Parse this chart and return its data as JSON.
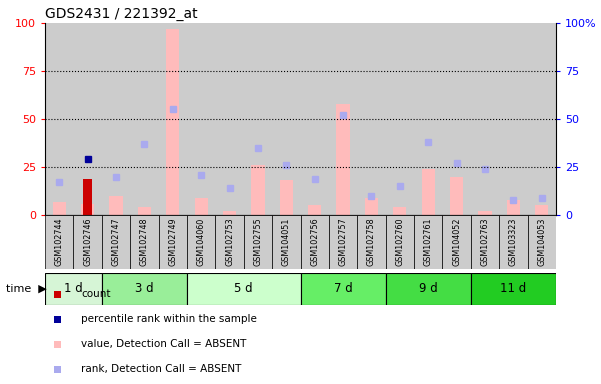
{
  "title": "GDS2431 / 221392_at",
  "samples": [
    "GSM102744",
    "GSM102746",
    "GSM102747",
    "GSM102748",
    "GSM102749",
    "GSM104060",
    "GSM102753",
    "GSM102755",
    "GSM104051",
    "GSM102756",
    "GSM102757",
    "GSM102758",
    "GSM102760",
    "GSM102761",
    "GSM104052",
    "GSM102763",
    "GSM103323",
    "GSM104053"
  ],
  "time_groups": [
    {
      "label": "1 d",
      "start": 0,
      "end": 2,
      "color": "#d6f5d6"
    },
    {
      "label": "3 d",
      "start": 2,
      "end": 5,
      "color": "#99ee99"
    },
    {
      "label": "5 d",
      "start": 5,
      "end": 9,
      "color": "#ccffcc"
    },
    {
      "label": "7 d",
      "start": 9,
      "end": 12,
      "color": "#66ee66"
    },
    {
      "label": "9 d",
      "start": 12,
      "end": 15,
      "color": "#44dd44"
    },
    {
      "label": "11 d",
      "start": 15,
      "end": 18,
      "color": "#22cc22"
    }
  ],
  "pink_bars": [
    7,
    6,
    10,
    4,
    97,
    9,
    2,
    26,
    18,
    5,
    58,
    9,
    4,
    24,
    20,
    2,
    8,
    5
  ],
  "red_bar_idx": 1,
  "red_bar_value": 19,
  "blue_square_idx": 1,
  "blue_square_value": 29,
  "blue_dots": [
    {
      "idx": 0,
      "val": 17
    },
    {
      "idx": 2,
      "val": 20
    },
    {
      "idx": 3,
      "val": 37
    },
    {
      "idx": 4,
      "val": 55
    },
    {
      "idx": 5,
      "val": 21
    },
    {
      "idx": 6,
      "val": 14
    },
    {
      "idx": 7,
      "val": 35
    },
    {
      "idx": 8,
      "val": 26
    },
    {
      "idx": 9,
      "val": 19
    },
    {
      "idx": 10,
      "val": 52
    },
    {
      "idx": 11,
      "val": 10
    },
    {
      "idx": 12,
      "val": 15
    },
    {
      "idx": 13,
      "val": 38
    },
    {
      "idx": 14,
      "val": 27
    },
    {
      "idx": 15,
      "val": 24
    },
    {
      "idx": 16,
      "val": 8
    },
    {
      "idx": 17,
      "val": 9
    }
  ],
  "ylim": [
    0,
    100
  ],
  "yticks": [
    0,
    25,
    50,
    75,
    100
  ],
  "pink_color": "#ffbbbb",
  "red_color": "#cc0000",
  "blue_square_color": "#000099",
  "blue_dot_color": "#aaaaee",
  "col_bg_color": "#cccccc",
  "plot_bg_color": "#ffffff",
  "legend_items": [
    {
      "color": "#cc0000",
      "label": "count"
    },
    {
      "color": "#000099",
      "label": "percentile rank within the sample"
    },
    {
      "color": "#ffbbbb",
      "label": "value, Detection Call = ABSENT"
    },
    {
      "color": "#aaaaee",
      "label": "rank, Detection Call = ABSENT"
    }
  ]
}
